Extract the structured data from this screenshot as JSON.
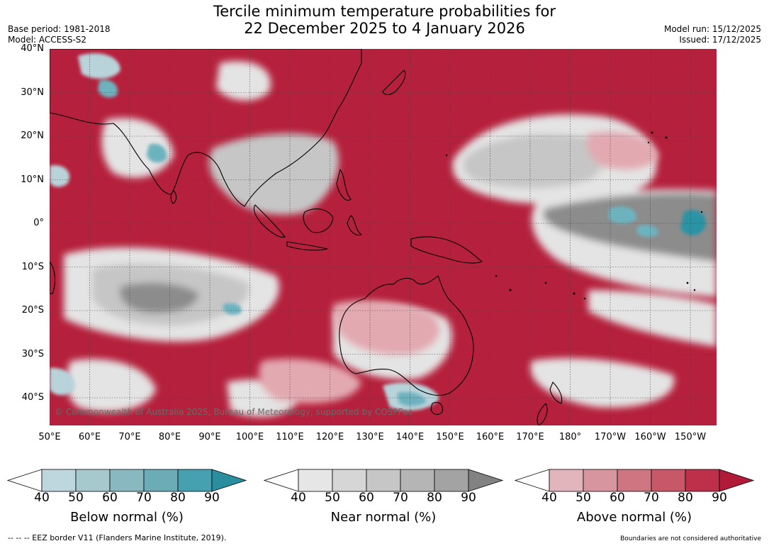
{
  "title": {
    "line1": "Tercile minimum temperature probabilities for",
    "line2": "22 December 2025 to 4 January 2026"
  },
  "meta_left": {
    "base_period": "Base period: 1981-2018",
    "model": "Model: ACCESS-S2"
  },
  "meta_right": {
    "model_run": "Model run: 15/12/2025",
    "issued": "Issued: 17/12/2025"
  },
  "map": {
    "lat_labels": [
      "40°N",
      "30°N",
      "20°N",
      "10°N",
      "0°",
      "10°S",
      "20°S",
      "30°S",
      "40°S"
    ],
    "lon_labels": [
      "50°E",
      "60°E",
      "70°E",
      "80°E",
      "90°E",
      "100°E",
      "110°E",
      "120°E",
      "130°E",
      "140°E",
      "150°E",
      "160°E",
      "170°E",
      "180°",
      "170°W",
      "160°W",
      "150°W"
    ],
    "copyright": "© Commonwealth of Australia 2025, Bureau of Meteorology, supported by COSPPac",
    "colors": {
      "above_dark": "#b5203c",
      "above_mid": "#cf5a6c",
      "above_light": "#e3a9b1",
      "near_light": "#e4e4e4",
      "near_mid": "#c6c6c6",
      "near_dark": "#8c8c8c",
      "below_light": "#b8d4da",
      "below_mid": "#6db3bf",
      "below_dark": "#2c93a4",
      "land_outline": "#000000"
    }
  },
  "colorbars": [
    {
      "name": "below",
      "title": "Below normal (%)",
      "ticks": [
        "40",
        "50",
        "60",
        "70",
        "80",
        "90"
      ],
      "colors": [
        "#bed6dd",
        "#a6c9ce",
        "#8ab8c0",
        "#6cacb7",
        "#45a1b0",
        "#2b8e9e"
      ]
    },
    {
      "name": "near",
      "title": "Near normal (%)",
      "ticks": [
        "40",
        "50",
        "60",
        "70",
        "80",
        "90"
      ],
      "colors": [
        "#e6e6e6",
        "#d6d6d6",
        "#c6c6c6",
        "#b5b5b5",
        "#a3a3a3",
        "#828282"
      ]
    },
    {
      "name": "above",
      "title": "Above normal (%)",
      "ticks": [
        "40",
        "50",
        "60",
        "70",
        "80",
        "90"
      ],
      "colors": [
        "#e2b4bc",
        "#d6959f",
        "#cd7580",
        "#c85768",
        "#be3049",
        "#b11a38"
      ]
    }
  ],
  "footer": {
    "eez_note": "--  --  -- EEZ border V11 (Flanders Marine Institute, 2019).",
    "disclaimer": "Boundaries are not considered authoritative"
  }
}
